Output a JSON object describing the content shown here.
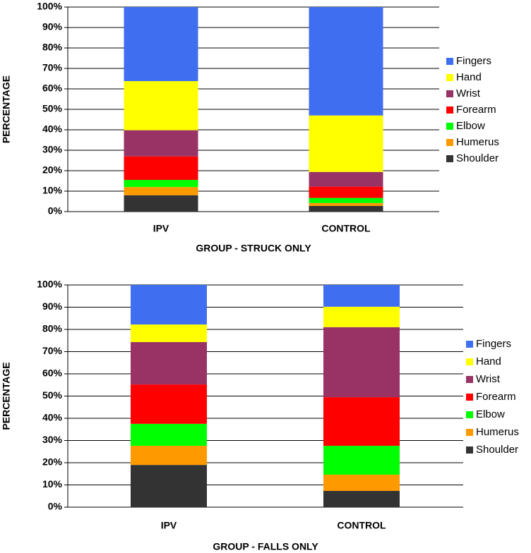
{
  "chart_data": [
    {
      "type": "bar",
      "stacked": true,
      "x_label": "GROUP - STRUCK ONLY",
      "y_label": "PERCENTAGE",
      "categories": [
        "IPV",
        "CONTROL"
      ],
      "series": [
        {
          "name": "Shoulder",
          "color": "#333333",
          "values": [
            8,
            2.8
          ]
        },
        {
          "name": "Humerus",
          "color": "#ff9900",
          "values": [
            4,
            1.4
          ]
        },
        {
          "name": "Elbow",
          "color": "#00ff00",
          "values": [
            3.5,
            2.5
          ]
        },
        {
          "name": "Forearm",
          "color": "#ff0000",
          "values": [
            11.5,
            5.5
          ]
        },
        {
          "name": "Wrist",
          "color": "#993366",
          "values": [
            12.8,
            7.2
          ]
        },
        {
          "name": "Hand",
          "color": "#ffff00",
          "values": [
            24,
            27.6
          ]
        },
        {
          "name": "Fingers",
          "color": "#3f6ff0",
          "values": [
            36.2,
            53
          ]
        }
      ],
      "ylim": [
        0,
        100
      ],
      "yticks": [
        {
          "value": 0,
          "label": "0%"
        },
        {
          "value": 10,
          "label": "10%"
        },
        {
          "value": 20,
          "label": "20%"
        },
        {
          "value": 30,
          "label": "30%"
        },
        {
          "value": 40,
          "label": "40%"
        },
        {
          "value": 50,
          "label": "50%"
        },
        {
          "value": 60,
          "label": "60%"
        },
        {
          "value": 70,
          "label": "70%"
        },
        {
          "value": 80,
          "label": "80%"
        },
        {
          "value": 90,
          "label": "90%"
        },
        {
          "value": 100,
          "label": "100%"
        }
      ],
      "grid": true,
      "legend": "right"
    },
    {
      "type": "bar",
      "stacked": true,
      "x_label": "GROUP - FALLS ONLY",
      "y_label": "PERCENTAGE",
      "categories": [
        "IPV",
        "CONTROL"
      ],
      "series": [
        {
          "name": "Shoulder",
          "color": "#333333",
          "values": [
            19,
            7.3
          ]
        },
        {
          "name": "Humerus",
          "color": "#ff9900",
          "values": [
            8.6,
            7.3
          ]
        },
        {
          "name": "Elbow",
          "color": "#00ff00",
          "values": [
            9.9,
            13
          ]
        },
        {
          "name": "Forearm",
          "color": "#ff0000",
          "values": [
            17.7,
            21.9
          ]
        },
        {
          "name": "Wrist",
          "color": "#993366",
          "values": [
            19.1,
            31.5
          ]
        },
        {
          "name": "Hand",
          "color": "#ffff00",
          "values": [
            7.9,
            9.2
          ]
        },
        {
          "name": "Fingers",
          "color": "#3f6ff0",
          "values": [
            17.8,
            9.8
          ]
        }
      ],
      "ylim": [
        0,
        100
      ],
      "yticks": [
        {
          "value": 0,
          "label": "0%"
        },
        {
          "value": 10,
          "label": "10%"
        },
        {
          "value": 20,
          "label": "20%"
        },
        {
          "value": 30,
          "label": "30%"
        },
        {
          "value": 40,
          "label": "40%"
        },
        {
          "value": 50,
          "label": "50%"
        },
        {
          "value": 60,
          "label": "60%"
        },
        {
          "value": 70,
          "label": "70%"
        },
        {
          "value": 80,
          "label": "80%"
        },
        {
          "value": 90,
          "label": "90%"
        },
        {
          "value": 100,
          "label": "100%"
        }
      ],
      "grid": true,
      "legend": "right"
    }
  ]
}
